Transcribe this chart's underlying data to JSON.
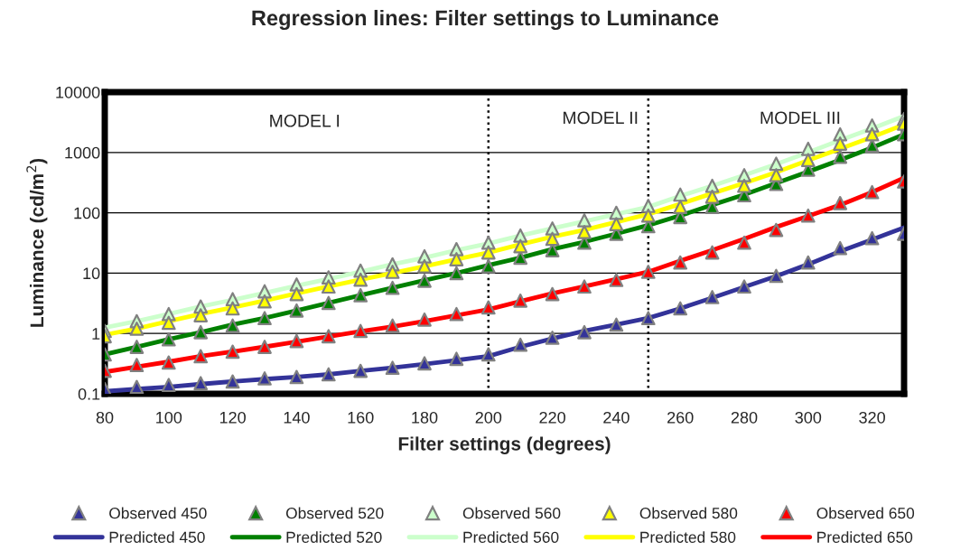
{
  "chart_data": {
    "type": "line",
    "title": "Regression lines: Filter settings to Luminance",
    "xlabel": "Filter settings (degrees)",
    "ylabel": "Luminance (cd/m$^{2}$)",
    "x": [
      80,
      90,
      100,
      110,
      120,
      130,
      140,
      150,
      160,
      170,
      180,
      190,
      200,
      210,
      220,
      230,
      240,
      250,
      260,
      270,
      280,
      290,
      300,
      310,
      320,
      330
    ],
    "series": [
      {
        "name": "Observed 450",
        "type": "scatter",
        "marker": "triangle",
        "color": "#333399",
        "values": [
          0.12,
          0.13,
          0.14,
          0.15,
          0.16,
          0.18,
          0.19,
          0.21,
          0.24,
          0.27,
          0.32,
          0.38,
          0.45,
          0.65,
          0.85,
          1.05,
          1.4,
          1.8,
          2.6,
          4.0,
          6,
          9,
          15,
          26,
          38,
          45
        ]
      },
      {
        "name": "Predicted 450",
        "marker": "none",
        "color": "#333399",
        "values": [
          0.11,
          0.12,
          0.13,
          0.145,
          0.16,
          0.175,
          0.19,
          0.21,
          0.24,
          0.27,
          0.31,
          0.36,
          0.42,
          0.6,
          0.82,
          1.1,
          1.4,
          1.8,
          2.6,
          3.9,
          5.9,
          8.9,
          14,
          23,
          36,
          57
        ]
      },
      {
        "name": "Observed 520",
        "type": "scatter",
        "marker": "triangle",
        "color": "#008000",
        "values": [
          0.45,
          0.6,
          0.8,
          1.05,
          1.35,
          1.8,
          2.4,
          3.2,
          4.3,
          5.7,
          7.5,
          10,
          13,
          18,
          24,
          32,
          45,
          60,
          85,
          125,
          195,
          300,
          520,
          850,
          1300,
          2000
        ]
      },
      {
        "name": "Predicted 520",
        "marker": "none",
        "color": "#008000",
        "values": [
          0.45,
          0.6,
          0.8,
          1.05,
          1.4,
          1.8,
          2.4,
          3.2,
          4.3,
          5.7,
          7.6,
          10,
          13.5,
          18,
          25,
          33,
          45,
          62,
          90,
          135,
          200,
          310,
          480,
          750,
          1200,
          2000
        ]
      },
      {
        "name": "Observed 560",
        "type": "scatter",
        "marker": "triangle",
        "color": "#ccffcc",
        "values": [
          1.1,
          1.6,
          2.1,
          2.8,
          3.7,
          5,
          6.5,
          8.5,
          11,
          14,
          19,
          25,
          32,
          42,
          55,
          75,
          100,
          130,
          200,
          280,
          420,
          650,
          1150,
          2000,
          2800,
          3600
        ]
      },
      {
        "name": "Predicted 560",
        "marker": "none",
        "color": "#ccffcc",
        "values": [
          1.25,
          1.6,
          2.1,
          2.8,
          3.6,
          4.7,
          6.2,
          8,
          10.5,
          14,
          18,
          24,
          31,
          42,
          55,
          72,
          95,
          125,
          190,
          280,
          420,
          640,
          1000,
          1600,
          2500,
          4000
        ]
      },
      {
        "name": "Observed 580",
        "type": "scatter",
        "marker": "triangle",
        "color": "#ffff00",
        "values": [
          0.9,
          1.2,
          1.5,
          2,
          2.6,
          3.4,
          4.5,
          6,
          7.8,
          10.5,
          13,
          17,
          22,
          28,
          37,
          48,
          65,
          90,
          125,
          185,
          280,
          420,
          750,
          1400,
          2000,
          3000
        ]
      },
      {
        "name": "Predicted 580",
        "marker": "none",
        "color": "#ffff00",
        "values": [
          0.95,
          1.2,
          1.6,
          2.1,
          2.7,
          3.5,
          4.6,
          6,
          7.8,
          10,
          13,
          17,
          22,
          30,
          40,
          52,
          70,
          95,
          140,
          210,
          310,
          470,
          740,
          1150,
          1800,
          2900
        ]
      },
      {
        "name": "Observed 650",
        "type": "scatter",
        "marker": "triangle",
        "color": "#ff0000",
        "values": [
          0.24,
          0.3,
          0.33,
          0.42,
          0.5,
          0.6,
          0.75,
          0.9,
          1.1,
          1.35,
          1.7,
          2.1,
          2.7,
          3.5,
          4.5,
          6,
          7.7,
          10.5,
          15,
          22,
          32,
          52,
          90,
          145,
          220,
          330
        ]
      },
      {
        "name": "Predicted 650",
        "marker": "none",
        "color": "#ff0000",
        "values": [
          0.23,
          0.28,
          0.34,
          0.42,
          0.5,
          0.6,
          0.73,
          0.89,
          1.08,
          1.3,
          1.6,
          2.0,
          2.5,
          3.4,
          4.6,
          6,
          7.9,
          10.5,
          16,
          24,
          37,
          58,
          88,
          135,
          220,
          380
        ]
      }
    ],
    "log": "y",
    "xlim": [
      80,
      330
    ],
    "ylim": [
      0.1,
      10000
    ],
    "xticks": [
      80,
      100,
      120,
      140,
      160,
      180,
      200,
      220,
      240,
      260,
      280,
      300,
      320
    ],
    "yticks": [
      0.1,
      1,
      10,
      100,
      1000,
      10000
    ],
    "grid": "y",
    "legend": "bottom",
    "line_style": "solid",
    "ref_lines": [
      {
        "axis": "x",
        "value": 200,
        "line_style": "dotted",
        "color": "#000000"
      },
      {
        "axis": "x",
        "value": 250,
        "line_style": "dotted",
        "color": "#000000"
      }
    ],
    "annotations": [
      "MODEL I",
      "MODEL II",
      "MODEL III"
    ]
  }
}
